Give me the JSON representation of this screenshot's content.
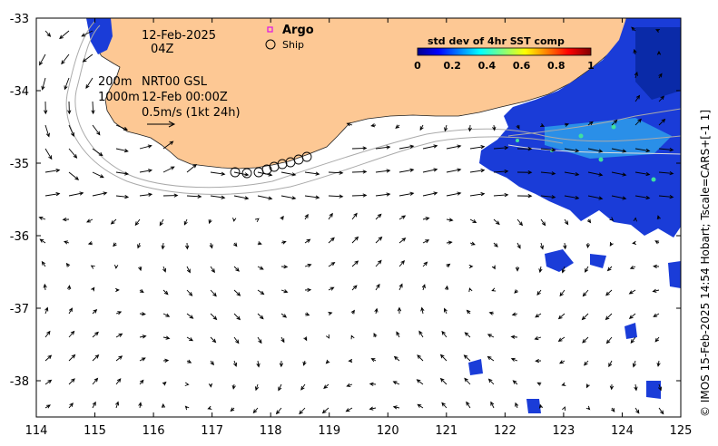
{
  "map": {
    "lon_ticks": [
      "114",
      "115",
      "116",
      "117",
      "118",
      "119",
      "120",
      "121",
      "122",
      "123",
      "124",
      "125"
    ],
    "lat_ticks": [
      "-33",
      "-34",
      "-35",
      "-36",
      "-37",
      "-38"
    ],
    "lon_range": [
      114,
      125
    ],
    "lat_range": [
      -38.5,
      -33
    ]
  },
  "annotations": {
    "date": "12-Feb-2025",
    "hour": "04Z",
    "depth_200": "200m",
    "depth_1000": "1000m",
    "product": "NRT00 GSL",
    "timestamp": "12-Feb 00:00Z",
    "scale_label": "0.5m/s (1kt 24h)"
  },
  "legend": {
    "argo": "Argo",
    "ship": "Ship",
    "argo_color": "#e020e0"
  },
  "colorbar": {
    "title": "std dev of 4hr SST comp",
    "ticks": [
      "0",
      "0.2",
      "0.4",
      "0.6",
      "0.8",
      "1"
    ]
  },
  "credit": "© IMOS 15-Feb-2025 14:54 Hobart; Tscale=CARS+[-1 1]",
  "colors": {
    "land": "#fdc894",
    "ocean": "#ffffff"
  }
}
